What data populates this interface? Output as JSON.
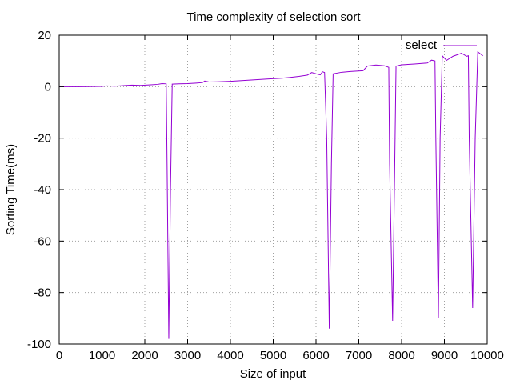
{
  "chart_data": {
    "type": "line",
    "title": "Time complexity of selection sort",
    "xlabel": "Size of input",
    "ylabel": "Sorting Time(ms)",
    "xlim": [
      0,
      10000
    ],
    "ylim": [
      -100,
      20
    ],
    "xticks": [
      0,
      1000,
      2000,
      3000,
      4000,
      5000,
      6000,
      7000,
      8000,
      9000,
      10000
    ],
    "yticks": [
      -100,
      -80,
      -60,
      -40,
      -20,
      0,
      20
    ],
    "grid": true,
    "legend_position": "top-right",
    "series": [
      {
        "name": "select",
        "color": "#9400d3",
        "points": [
          [
            0,
            0
          ],
          [
            500,
            0
          ],
          [
            1000,
            0.1
          ],
          [
            1100,
            0.3
          ],
          [
            1300,
            0.2
          ],
          [
            1500,
            0.4
          ],
          [
            1700,
            0.6
          ],
          [
            1900,
            0.5
          ],
          [
            2100,
            0.7
          ],
          [
            2300,
            0.9
          ],
          [
            2400,
            1.2
          ],
          [
            2500,
            1.1
          ],
          [
            2520,
            -30
          ],
          [
            2560,
            -98
          ],
          [
            2600,
            -40
          ],
          [
            2640,
            1.0
          ],
          [
            2800,
            1.1
          ],
          [
            3000,
            1.2
          ],
          [
            3200,
            1.4
          ],
          [
            3350,
            1.6
          ],
          [
            3400,
            2.2
          ],
          [
            3500,
            1.8
          ],
          [
            3700,
            1.9
          ],
          [
            4000,
            2.1
          ],
          [
            4300,
            2.4
          ],
          [
            4600,
            2.7
          ],
          [
            4900,
            3.0
          ],
          [
            5200,
            3.3
          ],
          [
            5400,
            3.6
          ],
          [
            5600,
            4.0
          ],
          [
            5800,
            4.5
          ],
          [
            5900,
            5.5
          ],
          [
            6000,
            5.0
          ],
          [
            6100,
            4.6
          ],
          [
            6150,
            5.8
          ],
          [
            6200,
            5.5
          ],
          [
            6250,
            -20
          ],
          [
            6310,
            -94
          ],
          [
            6360,
            -30
          ],
          [
            6400,
            5.0
          ],
          [
            6600,
            5.6
          ],
          [
            6800,
            5.9
          ],
          [
            7100,
            6.2
          ],
          [
            7200,
            8.0
          ],
          [
            7400,
            8.4
          ],
          [
            7600,
            8.1
          ],
          [
            7700,
            7.5
          ],
          [
            7720,
            -30
          ],
          [
            7790,
            -91
          ],
          [
            7840,
            -30
          ],
          [
            7870,
            8.0
          ],
          [
            8000,
            8.5
          ],
          [
            8300,
            8.8
          ],
          [
            8600,
            9.2
          ],
          [
            8700,
            10.3
          ],
          [
            8780,
            10.0
          ],
          [
            8800,
            -20
          ],
          [
            8860,
            -90
          ],
          [
            8900,
            -20
          ],
          [
            8950,
            12.0
          ],
          [
            9050,
            10.2
          ],
          [
            9200,
            11.8
          ],
          [
            9400,
            13.0
          ],
          [
            9520,
            11.8
          ],
          [
            9560,
            12.0
          ],
          [
            9580,
            -20
          ],
          [
            9660,
            -86
          ],
          [
            9720,
            -20
          ],
          [
            9780,
            13.5
          ],
          [
            9900,
            12.0
          ]
        ]
      }
    ]
  }
}
